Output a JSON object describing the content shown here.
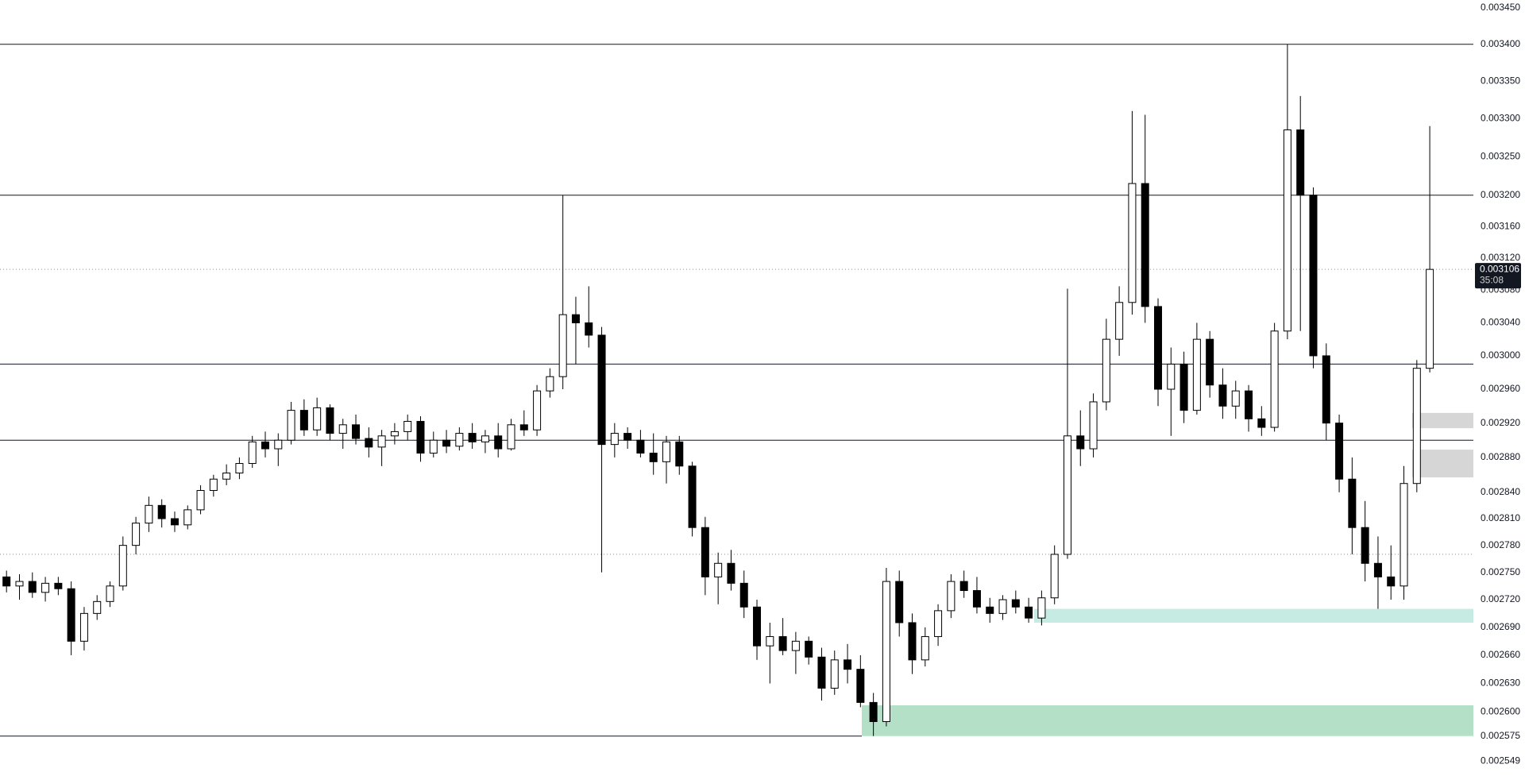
{
  "chart_data": {
    "type": "candlestick",
    "log_scale": true,
    "ylim": [
      0.002534,
      0.003461
    ],
    "yticks": [
      {
        "value": 0.00345,
        "label": "0.003450"
      },
      {
        "value": 0.0034,
        "label": "0.003400"
      },
      {
        "value": 0.00335,
        "label": "0.003350"
      },
      {
        "value": 0.0033,
        "label": "0.003300"
      },
      {
        "value": 0.00325,
        "label": "0.003250"
      },
      {
        "value": 0.0032,
        "label": "0.003200"
      },
      {
        "value": 0.00316,
        "label": "0.003160"
      },
      {
        "value": 0.00312,
        "label": "0.003120"
      },
      {
        "value": 0.00308,
        "label": "0.003080"
      },
      {
        "value": 0.00304,
        "label": "0.003040"
      },
      {
        "value": 0.003,
        "label": "0.003000"
      },
      {
        "value": 0.00296,
        "label": "0.002960"
      },
      {
        "value": 0.00292,
        "label": "0.002920"
      },
      {
        "value": 0.00288,
        "label": "0.002880"
      },
      {
        "value": 0.00284,
        "label": "0.002840"
      },
      {
        "value": 0.00281,
        "label": "0.002810"
      },
      {
        "value": 0.00278,
        "label": "0.002780"
      },
      {
        "value": 0.00275,
        "label": "0.002750"
      },
      {
        "value": 0.00272,
        "label": "0.002720"
      },
      {
        "value": 0.00269,
        "label": "0.002690"
      },
      {
        "value": 0.00266,
        "label": "0.002660"
      },
      {
        "value": 0.00263,
        "label": "0.002630"
      },
      {
        "value": 0.0026,
        "label": "0.002600"
      },
      0.002575,
      0.002549
    ],
    "up_color": "#ffffff",
    "down_color": "#000000",
    "outline_color": "#000000",
    "ohlc": [
      [
        0.002745,
        0.002752,
        0.002728,
        0.002735
      ],
      [
        0.002735,
        0.002748,
        0.00272,
        0.00274
      ],
      [
        0.00274,
        0.00275,
        0.002722,
        0.002728
      ],
      [
        0.002728,
        0.002745,
        0.002718,
        0.002738
      ],
      [
        0.002738,
        0.002745,
        0.002725,
        0.002732
      ],
      [
        0.002732,
        0.00274,
        0.00266,
        0.002675
      ],
      [
        0.002675,
        0.002712,
        0.002665,
        0.002705
      ],
      [
        0.002705,
        0.002725,
        0.002698,
        0.002718
      ],
      [
        0.002718,
        0.00274,
        0.002712,
        0.002735
      ],
      [
        0.002735,
        0.00279,
        0.00273,
        0.00278
      ],
      [
        0.00278,
        0.002812,
        0.00277,
        0.002805
      ],
      [
        0.002805,
        0.002835,
        0.002795,
        0.002825
      ],
      [
        0.002825,
        0.002832,
        0.0028,
        0.00281
      ],
      [
        0.00281,
        0.002818,
        0.002795,
        0.002803
      ],
      [
        0.002803,
        0.002825,
        0.002798,
        0.00282
      ],
      [
        0.00282,
        0.002848,
        0.002815,
        0.002842
      ],
      [
        0.002842,
        0.00286,
        0.002835,
        0.002855
      ],
      [
        0.002855,
        0.002872,
        0.002848,
        0.002862
      ],
      [
        0.002862,
        0.00288,
        0.002855,
        0.002873
      ],
      [
        0.002873,
        0.002905,
        0.002868,
        0.002898
      ],
      [
        0.002898,
        0.00291,
        0.00288,
        0.00289
      ],
      [
        0.00289,
        0.002908,
        0.00287,
        0.0029
      ],
      [
        0.0029,
        0.002945,
        0.002895,
        0.002935
      ],
      [
        0.002935,
        0.002948,
        0.002905,
        0.002912
      ],
      [
        0.002912,
        0.00295,
        0.002905,
        0.002938
      ],
      [
        0.002938,
        0.002942,
        0.0029,
        0.002908
      ],
      [
        0.002908,
        0.002925,
        0.00289,
        0.002918
      ],
      [
        0.002918,
        0.00293,
        0.002895,
        0.002902
      ],
      [
        0.002902,
        0.002915,
        0.00288,
        0.002892
      ],
      [
        0.002892,
        0.002912,
        0.00287,
        0.002905
      ],
      [
        0.002905,
        0.00292,
        0.002895,
        0.00291
      ],
      [
        0.00291,
        0.00293,
        0.0029,
        0.002922
      ],
      [
        0.002922,
        0.002928,
        0.002875,
        0.002885
      ],
      [
        0.002885,
        0.00291,
        0.00288,
        0.0029
      ],
      [
        0.0029,
        0.002912,
        0.002885,
        0.002893
      ],
      [
        0.002893,
        0.002915,
        0.002888,
        0.002908
      ],
      [
        0.002908,
        0.00292,
        0.00289,
        0.002898
      ],
      [
        0.002898,
        0.002912,
        0.002885,
        0.002905
      ],
      [
        0.002905,
        0.00292,
        0.00288,
        0.00289
      ],
      [
        0.00289,
        0.002925,
        0.002888,
        0.002918
      ],
      [
        0.002918,
        0.002935,
        0.002905,
        0.002912
      ],
      [
        0.002912,
        0.002965,
        0.002905,
        0.002958
      ],
      [
        0.002958,
        0.002985,
        0.00295,
        0.002975
      ],
      [
        0.002975,
        0.0032,
        0.00296,
        0.00305
      ],
      [
        0.00305,
        0.003072,
        0.00299,
        0.00304
      ],
      [
        0.00304,
        0.003085,
        0.00301,
        0.003025
      ],
      [
        0.003025,
        0.003035,
        0.00275,
        0.002895
      ],
      [
        0.002895,
        0.00292,
        0.00288,
        0.002908
      ],
      [
        0.002908,
        0.002915,
        0.00289,
        0.0029
      ],
      [
        0.0029,
        0.002912,
        0.00288,
        0.002885
      ],
      [
        0.002885,
        0.002908,
        0.00286,
        0.002875
      ],
      [
        0.002875,
        0.002905,
        0.00285,
        0.002898
      ],
      [
        0.002898,
        0.002905,
        0.00286,
        0.00287
      ],
      [
        0.00287,
        0.002875,
        0.00279,
        0.0028
      ],
      [
        0.0028,
        0.002812,
        0.002725,
        0.002745
      ],
      [
        0.002745,
        0.002772,
        0.002715,
        0.00276
      ],
      [
        0.00276,
        0.002775,
        0.00273,
        0.002738
      ],
      [
        0.002738,
        0.002752,
        0.0027,
        0.002712
      ],
      [
        0.002712,
        0.00272,
        0.002655,
        0.00267
      ],
      [
        0.00267,
        0.002695,
        0.00263,
        0.00268
      ],
      [
        0.00268,
        0.0027,
        0.00266,
        0.002665
      ],
      [
        0.002665,
        0.002685,
        0.00264,
        0.002675
      ],
      [
        0.002675,
        0.00268,
        0.00265,
        0.002658
      ],
      [
        0.002658,
        0.002668,
        0.002612,
        0.002625
      ],
      [
        0.002625,
        0.002665,
        0.002618,
        0.002655
      ],
      [
        0.002655,
        0.002672,
        0.00263,
        0.002645
      ],
      [
        0.002645,
        0.00266,
        0.002605,
        0.00261
      ],
      [
        0.00261,
        0.00262,
        0.002575,
        0.00259
      ],
      [
        0.00259,
        0.002755,
        0.002585,
        0.00274
      ],
      [
        0.00274,
        0.002752,
        0.00268,
        0.002695
      ],
      [
        0.002695,
        0.002705,
        0.00264,
        0.002655
      ],
      [
        0.002655,
        0.00269,
        0.002648,
        0.00268
      ],
      [
        0.00268,
        0.002715,
        0.00267,
        0.002708
      ],
      [
        0.002708,
        0.002748,
        0.0027,
        0.00274
      ],
      [
        0.00274,
        0.002752,
        0.002722,
        0.00273
      ],
      [
        0.00273,
        0.002745,
        0.002705,
        0.002712
      ],
      [
        0.002712,
        0.002722,
        0.002695,
        0.002705
      ],
      [
        0.002705,
        0.002725,
        0.002698,
        0.00272
      ],
      [
        0.00272,
        0.00273,
        0.002705,
        0.002712
      ],
      [
        0.002712,
        0.002722,
        0.002695,
        0.0027
      ],
      [
        0.0027,
        0.00273,
        0.002692,
        0.002722
      ],
      [
        0.002722,
        0.00278,
        0.002715,
        0.00277
      ],
      [
        0.00277,
        0.003082,
        0.002765,
        0.002905
      ],
      [
        0.002905,
        0.002935,
        0.00287,
        0.00289
      ],
      [
        0.00289,
        0.002955,
        0.00288,
        0.002945
      ],
      [
        0.002945,
        0.003045,
        0.002935,
        0.00302
      ],
      [
        0.00302,
        0.003085,
        0.003,
        0.003065
      ],
      [
        0.003065,
        0.00331,
        0.00305,
        0.003215
      ],
      [
        0.003215,
        0.003305,
        0.00304,
        0.00306
      ],
      [
        0.00306,
        0.00307,
        0.00294,
        0.00296
      ],
      [
        0.00296,
        0.00301,
        0.002905,
        0.00299
      ],
      [
        0.00299,
        0.003005,
        0.00292,
        0.002935
      ],
      [
        0.002935,
        0.00304,
        0.00293,
        0.00302
      ],
      [
        0.00302,
        0.00303,
        0.00295,
        0.002965
      ],
      [
        0.002965,
        0.002985,
        0.002925,
        0.00294
      ],
      [
        0.00294,
        0.00297,
        0.002925,
        0.002958
      ],
      [
        0.002958,
        0.002965,
        0.00291,
        0.002925
      ],
      [
        0.002925,
        0.00294,
        0.002905,
        0.002915
      ],
      [
        0.002915,
        0.00304,
        0.00291,
        0.00303
      ],
      [
        0.00303,
        0.0034,
        0.00302,
        0.003285
      ],
      [
        0.003285,
        0.00333,
        0.00303,
        0.0032
      ],
      [
        0.0032,
        0.00321,
        0.002985,
        0.003
      ],
      [
        0.003,
        0.003015,
        0.0029,
        0.00292
      ],
      [
        0.00292,
        0.00293,
        0.00284,
        0.002855
      ],
      [
        0.002855,
        0.00288,
        0.00277,
        0.0028
      ],
      [
        0.0028,
        0.00283,
        0.00274,
        0.00276
      ],
      [
        0.00276,
        0.00279,
        0.00271,
        0.002745
      ],
      [
        0.002745,
        0.00278,
        0.00272,
        0.002735
      ],
      [
        0.002735,
        0.00287,
        0.00272,
        0.00285
      ],
      [
        0.00285,
        0.002995,
        0.00284,
        0.002985
      ],
      [
        0.002985,
        0.00329,
        0.00298,
        0.003106
      ]
    ],
    "levels": [
      {
        "value": 0.0034,
        "style": "solid",
        "color": "#131722"
      },
      {
        "value": 0.0032,
        "style": "solid",
        "color": "#131722"
      },
      {
        "value": 0.00299,
        "style": "solid",
        "color": "#131722"
      },
      {
        "value": 0.0029,
        "style": "solid",
        "color": "#131722"
      },
      {
        "value": 0.002575,
        "style": "solid",
        "color": "#131722"
      },
      {
        "value": 0.003106,
        "style": "dotted",
        "color": "#8a8a8a"
      },
      {
        "value": 0.00277,
        "style": "dotted",
        "color": "#8a8a8a"
      }
    ],
    "zones": [
      {
        "from": 0.002932,
        "to": 0.002914,
        "color": "#d6d6d6"
      },
      {
        "from": 0.002889,
        "to": 0.002857,
        "color": "#d6d6d6"
      },
      {
        "from": 0.00271,
        "to": 0.002695,
        "color": "#c6ebe3"
      },
      {
        "from": 0.002607,
        "to": 0.002575,
        "color": "#b3e0c7"
      }
    ],
    "current_price": 0.003106,
    "countdown": "35:08",
    "price_label_color": "#131722"
  }
}
